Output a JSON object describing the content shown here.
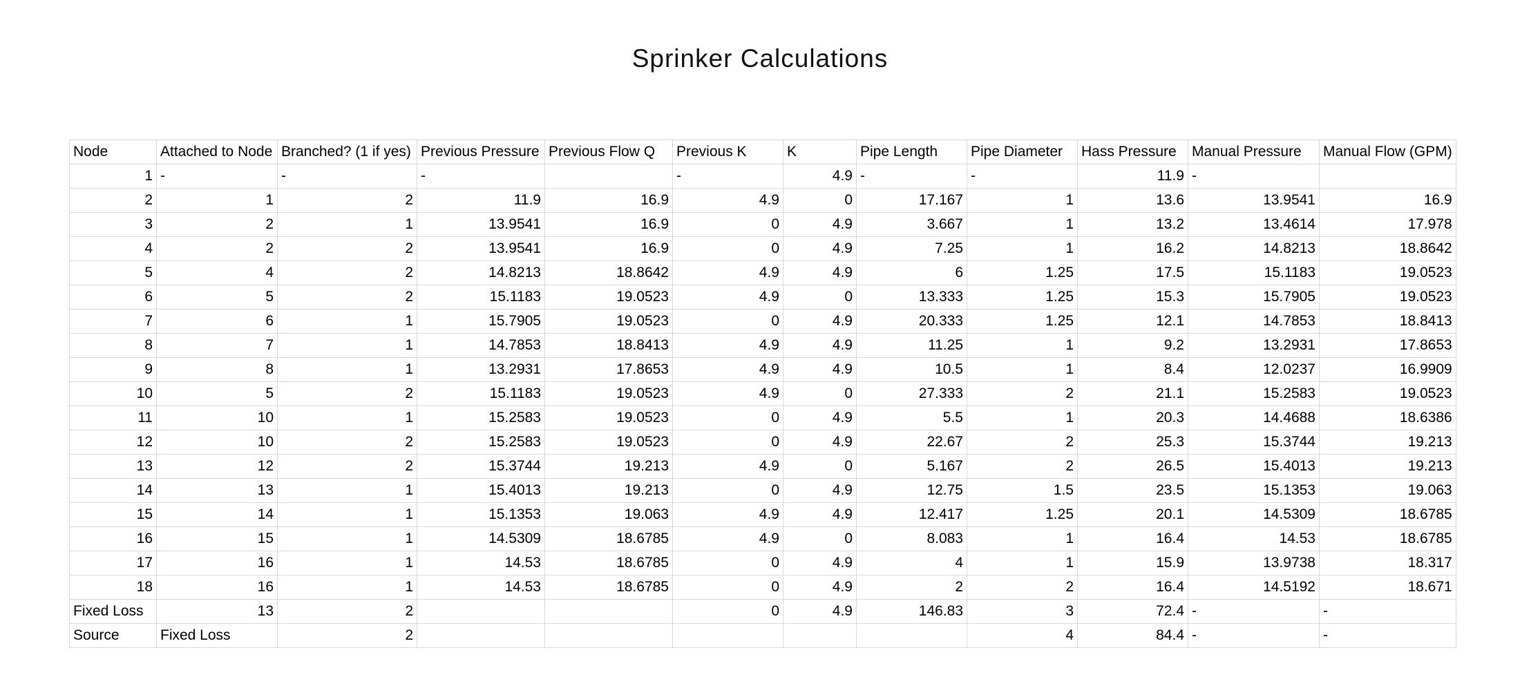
{
  "title": "Sprinker Calculations",
  "table": {
    "headers": [
      "Node",
      "Attached to Node",
      "Branched? (1 if yes)",
      "Previous Pressure",
      "Previous Flow Q",
      "Previous K",
      "K",
      "Pipe Length",
      "Pipe Diameter",
      "Hass Pressure",
      "Manual Pressure",
      "Manual Flow (GPM)"
    ],
    "rows": [
      [
        "1",
        "-",
        "-",
        "-",
        "",
        "-",
        "4.9",
        "-",
        "-",
        "11.9",
        "-",
        ""
      ],
      [
        "2",
        "1",
        "2",
        "11.9",
        "16.9",
        "4.9",
        "0",
        "17.167",
        "1",
        "13.6",
        "13.9541",
        "16.9"
      ],
      [
        "3",
        "2",
        "1",
        "13.9541",
        "16.9",
        "0",
        "4.9",
        "3.667",
        "1",
        "13.2",
        "13.4614",
        "17.978"
      ],
      [
        "4",
        "2",
        "2",
        "13.9541",
        "16.9",
        "0",
        "4.9",
        "7.25",
        "1",
        "16.2",
        "14.8213",
        "18.8642"
      ],
      [
        "5",
        "4",
        "2",
        "14.8213",
        "18.8642",
        "4.9",
        "4.9",
        "6",
        "1.25",
        "17.5",
        "15.1183",
        "19.0523"
      ],
      [
        "6",
        "5",
        "2",
        "15.1183",
        "19.0523",
        "4.9",
        "0",
        "13.333",
        "1.25",
        "15.3",
        "15.7905",
        "19.0523"
      ],
      [
        "7",
        "6",
        "1",
        "15.7905",
        "19.0523",
        "0",
        "4.9",
        "20.333",
        "1.25",
        "12.1",
        "14.7853",
        "18.8413"
      ],
      [
        "8",
        "7",
        "1",
        "14.7853",
        "18.8413",
        "4.9",
        "4.9",
        "11.25",
        "1",
        "9.2",
        "13.2931",
        "17.8653"
      ],
      [
        "9",
        "8",
        "1",
        "13.2931",
        "17.8653",
        "4.9",
        "4.9",
        "10.5",
        "1",
        "8.4",
        "12.0237",
        "16.9909"
      ],
      [
        "10",
        "5",
        "2",
        "15.1183",
        "19.0523",
        "4.9",
        "0",
        "27.333",
        "2",
        "21.1",
        "15.2583",
        "19.0523"
      ],
      [
        "11",
        "10",
        "1",
        "15.2583",
        "19.0523",
        "0",
        "4.9",
        "5.5",
        "1",
        "20.3",
        "14.4688",
        "18.6386"
      ],
      [
        "12",
        "10",
        "2",
        "15.2583",
        "19.0523",
        "0",
        "4.9",
        "22.67",
        "2",
        "25.3",
        "15.3744",
        "19.213"
      ],
      [
        "13",
        "12",
        "2",
        "15.3744",
        "19.213",
        "4.9",
        "0",
        "5.167",
        "2",
        "26.5",
        "15.4013",
        "19.213"
      ],
      [
        "14",
        "13",
        "1",
        "15.4013",
        "19.213",
        "0",
        "4.9",
        "12.75",
        "1.5",
        "23.5",
        "15.1353",
        "19.063"
      ],
      [
        "15",
        "14",
        "1",
        "15.1353",
        "19.063",
        "4.9",
        "4.9",
        "12.417",
        "1.25",
        "20.1",
        "14.5309",
        "18.6785"
      ],
      [
        "16",
        "15",
        "1",
        "14.5309",
        "18.6785",
        "4.9",
        "0",
        "8.083",
        "1",
        "16.4",
        "14.53",
        "18.6785"
      ],
      [
        "17",
        "16",
        "1",
        "14.53",
        "18.6785",
        "0",
        "4.9",
        "4",
        "1",
        "15.9",
        "13.9738",
        "18.317"
      ],
      [
        "18",
        "16",
        "1",
        "14.53",
        "18.6785",
        "0",
        "4.9",
        "2",
        "2",
        "16.4",
        "14.5192",
        "18.671"
      ],
      [
        "Fixed Loss",
        "13",
        "2",
        "",
        "",
        "0",
        "4.9",
        "146.83",
        "3",
        "72.4",
        "-",
        "-"
      ],
      [
        "Source",
        "Fixed Loss",
        "2",
        "",
        "",
        "",
        "",
        "",
        "4",
        "84.4",
        "-",
        "-"
      ]
    ]
  }
}
